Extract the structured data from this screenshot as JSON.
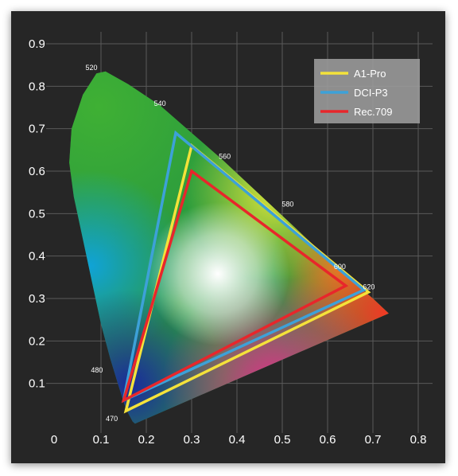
{
  "chart_data": {
    "type": "line",
    "title": "",
    "xlabel": "",
    "ylabel": "",
    "xlim": [
      0,
      0.8
    ],
    "ylim": [
      0,
      0.9
    ],
    "x_ticks": [
      "0",
      "0.1",
      "0.2",
      "0.3",
      "0.4",
      "0.5",
      "0.6",
      "0.7",
      "0.8"
    ],
    "y_ticks": [
      "0.1",
      "0.2",
      "0.3",
      "0.4",
      "0.5",
      "0.6",
      "0.7",
      "0.8",
      "0.9"
    ],
    "grid": true,
    "legend_position": "top-right",
    "locus": [
      [
        0.175,
        0.005
      ],
      [
        0.17,
        0.01
      ],
      [
        0.155,
        0.04
      ],
      [
        0.14,
        0.09
      ],
      [
        0.12,
        0.16
      ],
      [
        0.1,
        0.24
      ],
      [
        0.08,
        0.34
      ],
      [
        0.06,
        0.44
      ],
      [
        0.04,
        0.54
      ],
      [
        0.03,
        0.62
      ],
      [
        0.035,
        0.7
      ],
      [
        0.06,
        0.78
      ],
      [
        0.09,
        0.83
      ],
      [
        0.11,
        0.835
      ],
      [
        0.16,
        0.805
      ],
      [
        0.23,
        0.755
      ],
      [
        0.3,
        0.69
      ],
      [
        0.37,
        0.625
      ],
      [
        0.44,
        0.555
      ],
      [
        0.51,
        0.485
      ],
      [
        0.58,
        0.415
      ],
      [
        0.65,
        0.345
      ],
      [
        0.7,
        0.3
      ],
      [
        0.735,
        0.265
      ]
    ],
    "wavelength_labels": [
      {
        "label": "470",
        "x": 0.124,
        "y": 0.011
      },
      {
        "label": "480",
        "x": 0.091,
        "y": 0.126
      },
      {
        "label": "520",
        "x": 0.079,
        "y": 0.838
      },
      {
        "label": "540",
        "x": 0.23,
        "y": 0.754
      },
      {
        "label": "560",
        "x": 0.373,
        "y": 0.629
      },
      {
        "label": "580",
        "x": 0.512,
        "y": 0.517
      },
      {
        "label": "600",
        "x": 0.627,
        "y": 0.369
      },
      {
        "label": "620",
        "x": 0.691,
        "y": 0.322
      }
    ],
    "series": [
      {
        "name": "A1-Pro",
        "color": "#f4e23a",
        "points": [
          [
            0.155,
            0.035
          ],
          [
            0.3,
            0.66
          ],
          [
            0.69,
            0.315
          ]
        ]
      },
      {
        "name": "DCI-P3",
        "color": "#3da1d8",
        "points": [
          [
            0.15,
            0.06
          ],
          [
            0.265,
            0.69
          ],
          [
            0.68,
            0.32
          ]
        ]
      },
      {
        "name": "Rec.709",
        "color": "#e8262b",
        "points": [
          [
            0.15,
            0.06
          ],
          [
            0.3,
            0.6
          ],
          [
            0.64,
            0.33
          ]
        ]
      }
    ]
  }
}
